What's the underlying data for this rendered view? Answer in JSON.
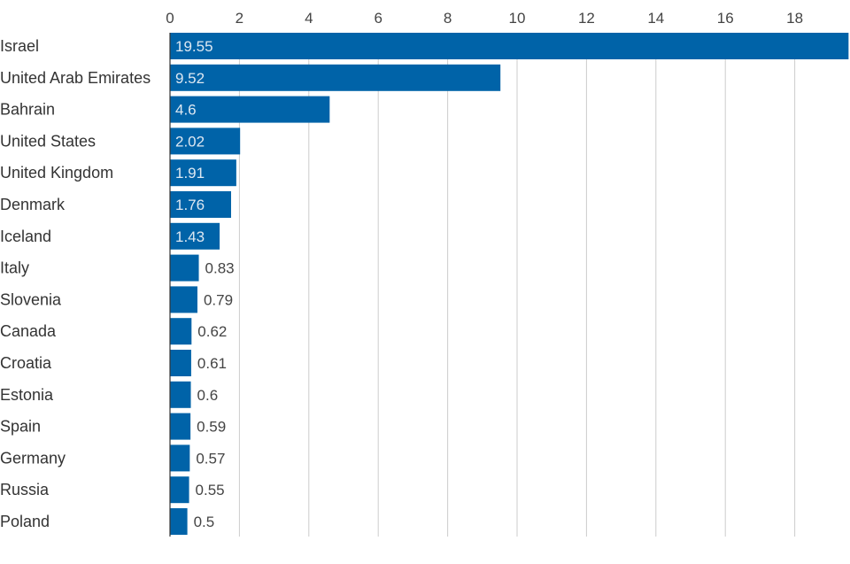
{
  "chart_data": {
    "type": "bar",
    "orientation": "horizontal",
    "title": "",
    "xlabel": "",
    "ylabel": "",
    "categories": [
      "Israel",
      "United Arab Emirates",
      "Bahrain",
      "United States",
      "United Kingdom",
      "Denmark",
      "Iceland",
      "Italy",
      "Slovenia",
      "Canada",
      "Croatia",
      "Estonia",
      "Spain",
      "Germany",
      "Russia",
      "Poland"
    ],
    "values": [
      19.55,
      9.52,
      4.6,
      2.02,
      1.91,
      1.76,
      1.43,
      0.83,
      0.79,
      0.62,
      0.61,
      0.6,
      0.59,
      0.57,
      0.55,
      0.5
    ],
    "value_labels": [
      "19.55",
      "9.52",
      "4.6",
      "2.02",
      "1.91",
      "1.76",
      "1.43",
      "0.83",
      "0.79",
      "0.62",
      "0.61",
      "0.6",
      "0.59",
      "0.57",
      "0.55",
      "0.5"
    ],
    "xticks": [
      0,
      2,
      4,
      6,
      8,
      10,
      12,
      14,
      16,
      18
    ],
    "xlim": [
      0,
      19.55
    ],
    "grid": true,
    "bar_color": "#0063a8",
    "label_inside_color": "#dde8f2",
    "label_outside_color": "#444444"
  }
}
